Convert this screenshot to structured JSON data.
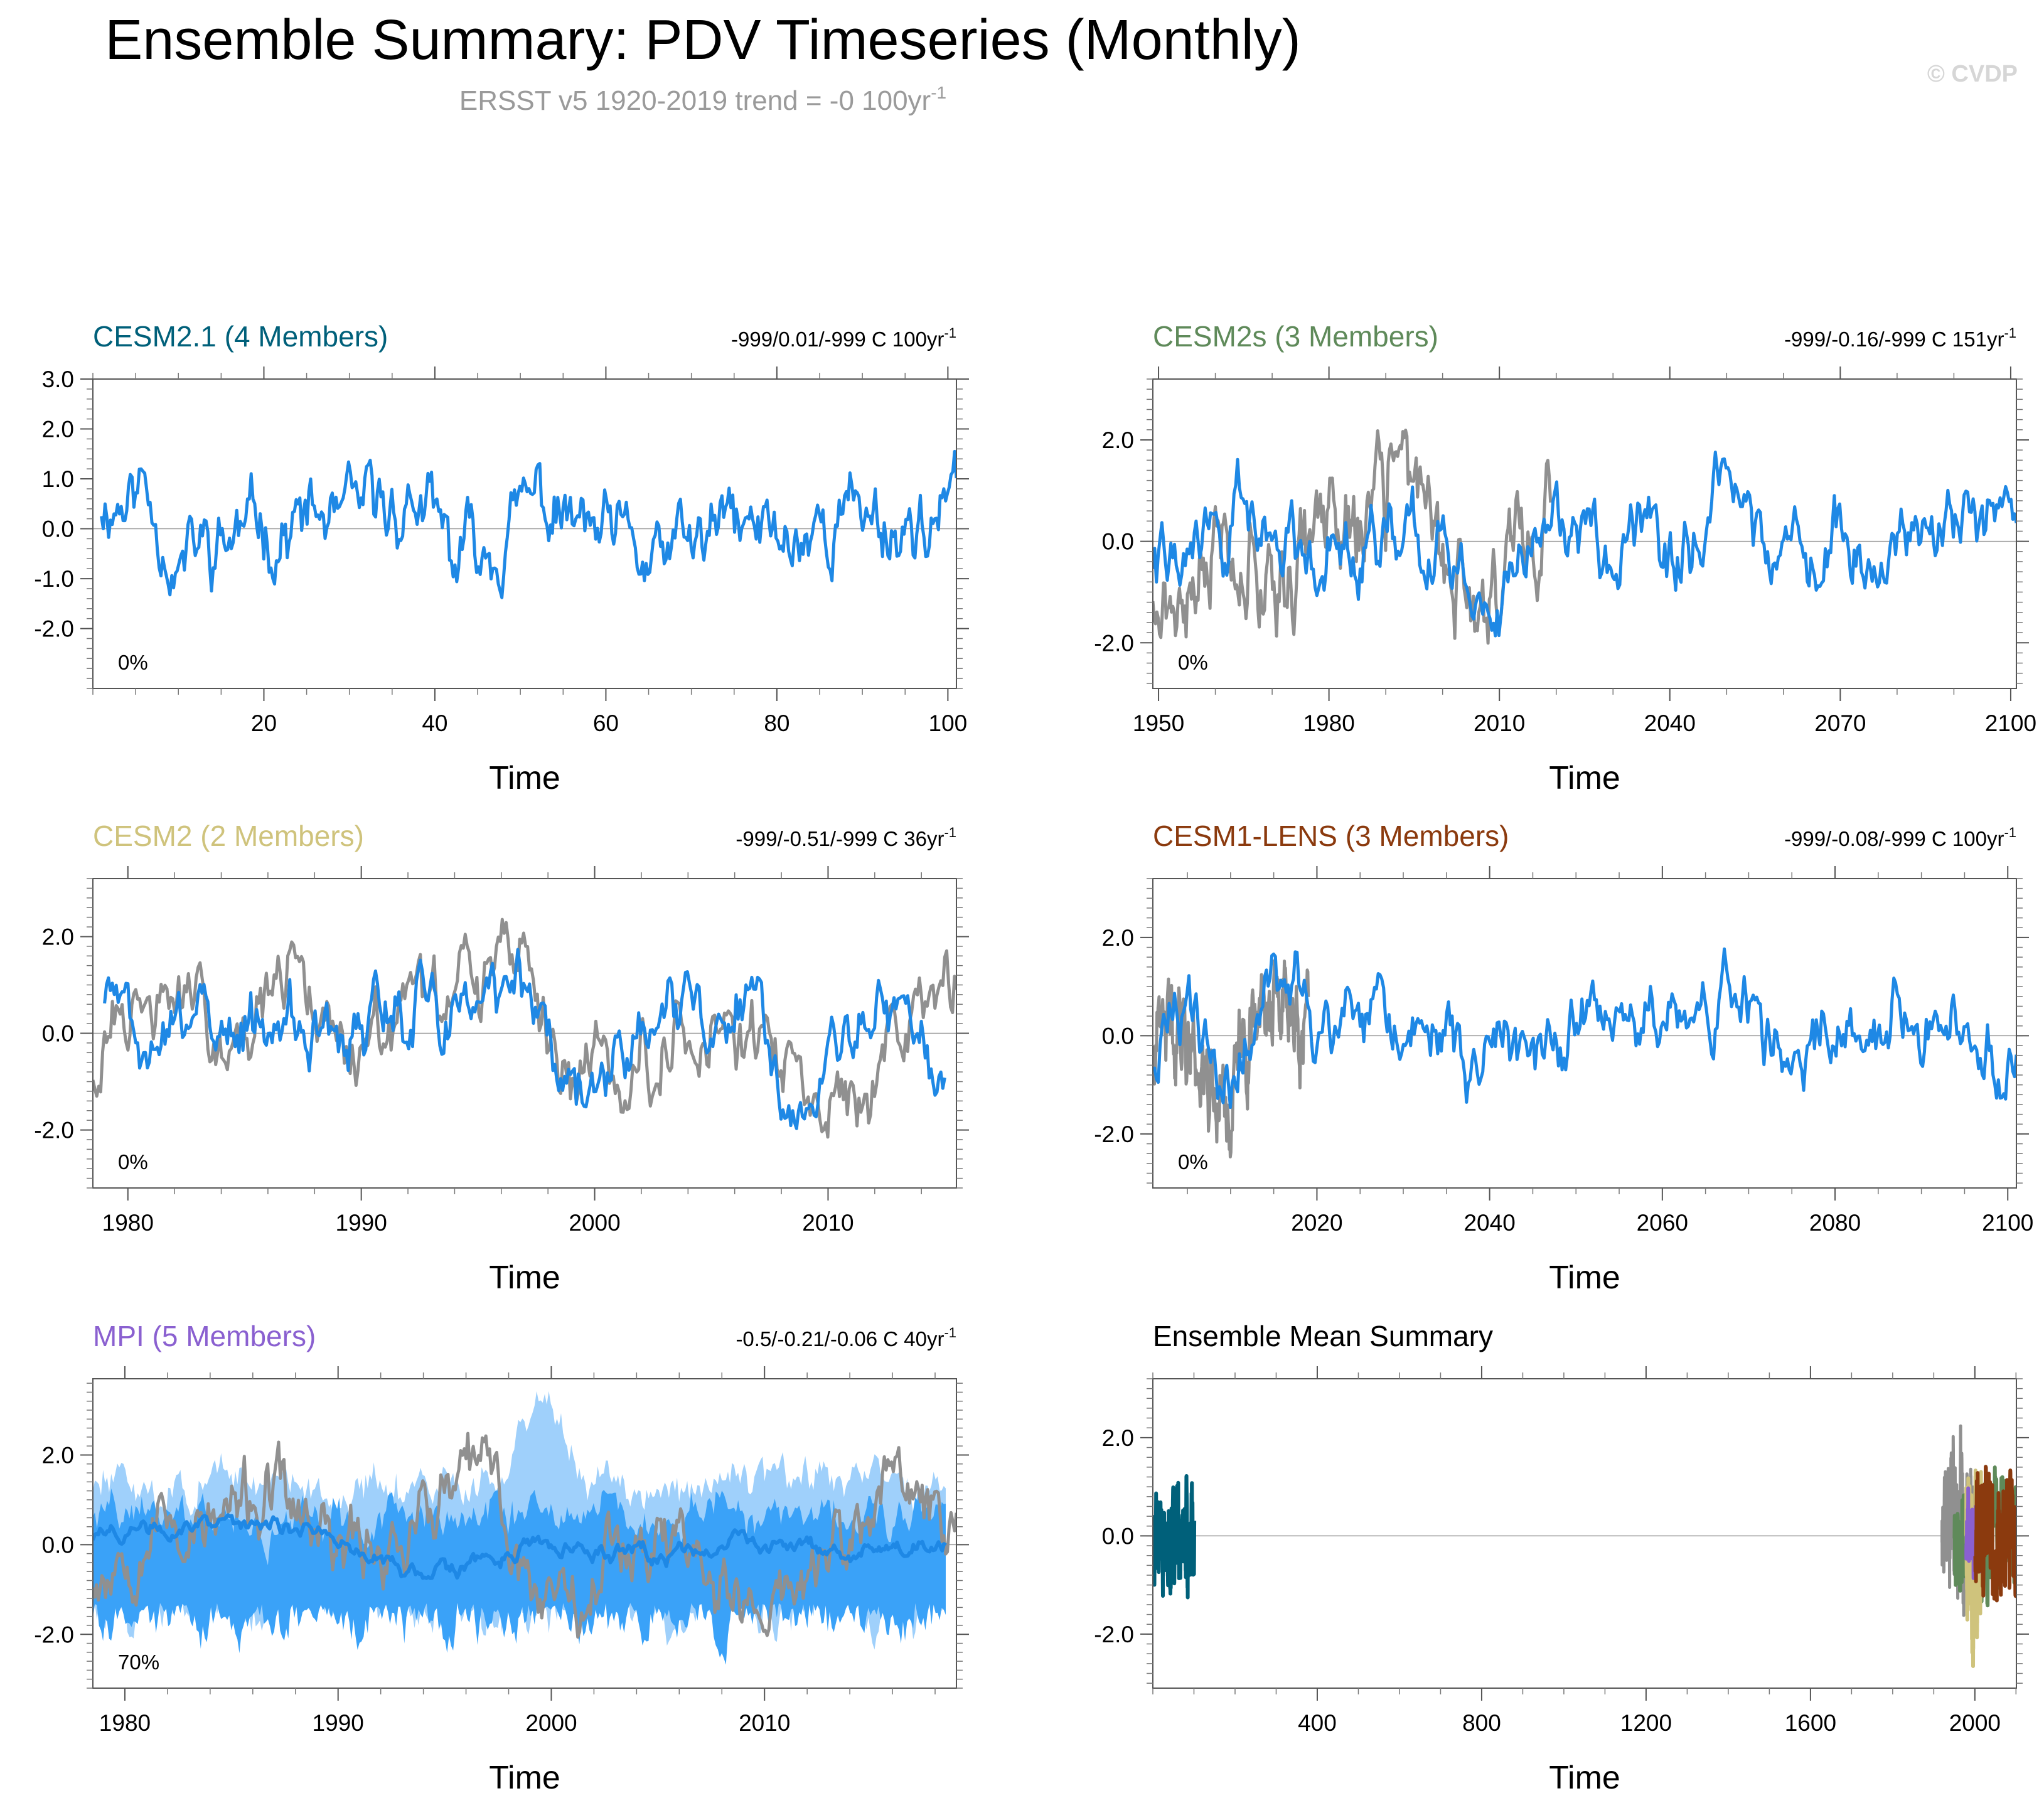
{
  "title": "Ensemble Summary: PDV Timeseries (Monthly)",
  "subtitle": {
    "main": "ERSST v5 1920-2019 trend = -0 100yr",
    "sup": "-1"
  },
  "watermark": "© CVDP",
  "colors": {
    "obs": "#909090",
    "ens": "#1e88e5",
    "spread_outer": "#9fd0fb",
    "spread_inner": "#3aa2f8",
    "cesm21": "#00607a",
    "cesm2s": "#5f8a5a",
    "cesm2": "#cfc37c",
    "cesm1": "#8b3a0e",
    "mpi": "#8a60d0"
  },
  "chart_data": [
    {
      "id": "cesm21",
      "type": "line",
      "title": "CESM2.1 (4 Members)",
      "title_color": "#00607a",
      "stats": "-999/0.01/-999 C 100yr",
      "stats_sup": "-1",
      "percent": "0%",
      "xlabel": "Time",
      "xlim": [
        0,
        101
      ],
      "ylim": [
        -3.2,
        3.0
      ],
      "xticks": [
        20,
        40,
        60,
        80,
        100
      ],
      "yticks": [
        3.0,
        2.0,
        1.0,
        0.0,
        -1.0,
        -2.0
      ],
      "ytick_labels": [
        "3.0",
        "2.0",
        "1.0",
        "0.0",
        "-1.0",
        "-2.0"
      ],
      "series": [
        {
          "name": "Ensemble mean",
          "role": "ens",
          "x_start": 1,
          "x_end": 101,
          "seed": 11,
          "amp": 1.0,
          "mean": 0.0,
          "anchors": [
            [
              1,
              0.6
            ],
            [
              6,
              0.9
            ],
            [
              10,
              -0.6
            ],
            [
              20,
              0.1
            ],
            [
              30,
              0.0
            ],
            [
              38,
              0.6
            ],
            [
              42,
              -0.8
            ],
            [
              52,
              0.5
            ],
            [
              58,
              -0.2
            ],
            [
              65,
              -0.8
            ],
            [
              75,
              0.0
            ],
            [
              82,
              -0.2
            ],
            [
              88,
              0.4
            ],
            [
              95,
              0.1
            ],
            [
              101,
              0.3
            ]
          ]
        }
      ]
    },
    {
      "id": "cesm2s",
      "type": "line",
      "title": "CESM2s (3 Members)",
      "title_color": "#5f8a5a",
      "stats": "-999/-0.16/-999 C 151yr",
      "stats_sup": "-1",
      "percent": "0%",
      "xlabel": "Time",
      "xlim": [
        1949,
        2101
      ],
      "ylim": [
        -2.9,
        3.2
      ],
      "xticks": [
        1950,
        1980,
        2010,
        2040,
        2070,
        2100
      ],
      "yticks": [
        2.0,
        0.0,
        -2.0
      ],
      "ytick_labels": [
        "2.0",
        "0.0",
        "-2.0"
      ],
      "series": [
        {
          "name": "ERSST v5",
          "role": "obs",
          "x_start": 1949,
          "x_end": 2019,
          "seed": 21,
          "amp": 1.25,
          "mean": 0.0,
          "anchors": [
            [
              1949,
              -0.7
            ],
            [
              1955,
              -1.5
            ],
            [
              1960,
              0.4
            ],
            [
              1970,
              -0.6
            ],
            [
              1980,
              0.2
            ],
            [
              1988,
              0.7
            ],
            [
              1996,
              1.2
            ],
            [
              2002,
              -0.8
            ],
            [
              2008,
              -1.3
            ],
            [
              2013,
              0.6
            ],
            [
              2019,
              0.3
            ]
          ]
        },
        {
          "name": "Ensemble mean",
          "role": "ens",
          "x_start": 1949,
          "x_end": 2101,
          "seed": 22,
          "amp": 1.0,
          "mean": 0.0,
          "anchors": [
            [
              1949,
              -0.2
            ],
            [
              1955,
              -0.6
            ],
            [
              1960,
              0.6
            ],
            [
              1975,
              0.0
            ],
            [
              1985,
              0.5
            ],
            [
              2000,
              -0.4
            ],
            [
              2010,
              -0.8
            ],
            [
              2020,
              0.2
            ],
            [
              2035,
              -0.3
            ],
            [
              2050,
              0.3
            ],
            [
              2065,
              -0.1
            ],
            [
              2080,
              0.2
            ],
            [
              2095,
              0.4
            ],
            [
              2101,
              0.1
            ]
          ]
        }
      ]
    },
    {
      "id": "cesm2",
      "type": "line",
      "title": "CESM2 (2 Members)",
      "title_color": "#cfc37c",
      "stats": "-999/-0.51/-999 C 36yr",
      "stats_sup": "-1",
      "percent": "0%",
      "xlabel": "Time",
      "xlim": [
        1978.5,
        2015.5
      ],
      "ylim": [
        -3.2,
        3.2
      ],
      "xticks": [
        1980,
        1990,
        2000,
        2010
      ],
      "yticks": [
        2.0,
        0.0,
        -2.0
      ],
      "ytick_labels": [
        "2.0",
        "0.0",
        "-2.0"
      ],
      "series": [
        {
          "name": "ERSST v5",
          "role": "obs",
          "x_start": 1978.5,
          "x_end": 2015.5,
          "seed": 31,
          "amp": 1.1,
          "mean": 0.0,
          "anchors": [
            [
              1978.5,
              -0.5
            ],
            [
              1981,
              0.7
            ],
            [
              1984,
              0.3
            ],
            [
              1987,
              0.9
            ],
            [
              1990,
              -0.2
            ],
            [
              1993,
              0.3
            ],
            [
              1995,
              1.0
            ],
            [
              1997,
              1.6
            ],
            [
              1999,
              -1.0
            ],
            [
              2002,
              -0.4
            ],
            [
              2004,
              0.4
            ],
            [
              2007,
              0.0
            ],
            [
              2009,
              -1.6
            ],
            [
              2011,
              -1.2
            ],
            [
              2013,
              -0.4
            ],
            [
              2015.5,
              1.4
            ]
          ]
        },
        {
          "name": "Ensemble mean",
          "role": "ens",
          "x_start": 1979,
          "x_end": 2015,
          "seed": 32,
          "amp": 1.0,
          "mean": 0.0,
          "anchors": [
            [
              1979,
              1.0
            ],
            [
              1980,
              0.2
            ],
            [
              1981,
              -0.6
            ],
            [
              1983,
              0.5
            ],
            [
              1986,
              0.2
            ],
            [
              1988,
              -0.1
            ],
            [
              1992,
              0.2
            ],
            [
              1995,
              0.6
            ],
            [
              1997,
              1.0
            ],
            [
              1999,
              -1.6
            ],
            [
              2001,
              -0.5
            ],
            [
              2003,
              0.5
            ],
            [
              2005,
              0.0
            ],
            [
              2007,
              0.8
            ],
            [
              2009,
              -1.6
            ],
            [
              2011,
              0.3
            ],
            [
              2013,
              0.5
            ],
            [
              2015,
              -1.3
            ]
          ]
        }
      ]
    },
    {
      "id": "cesm1",
      "type": "line",
      "title": "CESM1-LENS (3 Members)",
      "title_color": "#8b3a0e",
      "stats": "-999/-0.08/-999 C 100yr",
      "stats_sup": "-1",
      "percent": "0%",
      "xlabel": "Time",
      "xlim": [
        2001,
        2101
      ],
      "ylim": [
        -3.1,
        3.2
      ],
      "xticks": [
        2020,
        2040,
        2060,
        2080,
        2100
      ],
      "yticks": [
        2.0,
        0.0,
        -2.0
      ],
      "ytick_labels": [
        "2.0",
        "0.0",
        "-2.0"
      ],
      "series": [
        {
          "name": "ERSST v5",
          "role": "obs",
          "x_start": 2001,
          "x_end": 2019,
          "seed": 41,
          "amp": 1.2,
          "mean": 0.0,
          "anchors": [
            [
              2001,
              -0.6
            ],
            [
              2004,
              0.5
            ],
            [
              2007,
              -0.6
            ],
            [
              2010,
              -1.4
            ],
            [
              2013,
              0.8
            ],
            [
              2016,
              0.4
            ],
            [
              2019,
              0.0
            ]
          ]
        },
        {
          "name": "Ensemble mean",
          "role": "ens",
          "x_start": 2001,
          "x_end": 2101,
          "seed": 42,
          "amp": 1.0,
          "mean": 0.0,
          "anchors": [
            [
              2001,
              -0.3
            ],
            [
              2006,
              0.4
            ],
            [
              2010,
              -1.2
            ],
            [
              2014,
              0.9
            ],
            [
              2020,
              0.3
            ],
            [
              2030,
              0.0
            ],
            [
              2040,
              -0.4
            ],
            [
              2050,
              0.1
            ],
            [
              2060,
              0.0
            ],
            [
              2068,
              0.8
            ],
            [
              2075,
              -0.9
            ],
            [
              2082,
              0.6
            ],
            [
              2088,
              0.3
            ],
            [
              2095,
              0.1
            ],
            [
              2101,
              -0.6
            ]
          ]
        }
      ]
    },
    {
      "id": "mpi",
      "type": "area",
      "title": "MPI (5 Members)",
      "title_color": "#8a60d0",
      "stats": "-0.5/-0.21/-0.06 C 40yr",
      "stats_sup": "-1",
      "percent": "70%",
      "xlabel": "Time",
      "xlim": [
        1978.5,
        2019
      ],
      "ylim": [
        -3.2,
        3.7
      ],
      "xticks": [
        1980,
        1990,
        2000,
        2010
      ],
      "yticks": [
        2.0,
        0.0,
        -2.0
      ],
      "ytick_labels": [
        "2.0",
        "0.0",
        "-2.0"
      ],
      "series": [
        {
          "name": "Outer spread",
          "role": "spread_outer",
          "x_start": 1978.5,
          "x_end": 2018.5,
          "seed": 51,
          "upper": 1.3,
          "lower": -1.0
        },
        {
          "name": "Inner spread",
          "role": "spread_inner",
          "x_start": 1978.5,
          "x_end": 2018.5,
          "seed": 52,
          "upper": 0.7,
          "lower": -1.3
        },
        {
          "name": "ERSST v5",
          "role": "obs",
          "x_start": 1978.5,
          "x_end": 2019,
          "seed": 53,
          "amp": 1.1,
          "mean": 0.0,
          "anchors": [
            [
              1978.5,
              -0.5
            ],
            [
              1981,
              0.7
            ],
            [
              1984,
              0.3
            ],
            [
              1987,
              1.0
            ],
            [
              1990,
              -0.2
            ],
            [
              1993,
              0.3
            ],
            [
              1995,
              1.0
            ],
            [
              1997,
              1.6
            ],
            [
              1999,
              -1.0
            ],
            [
              2002,
              -0.4
            ],
            [
              2004,
              0.4
            ],
            [
              2007,
              0.0
            ],
            [
              2009,
              -1.6
            ],
            [
              2011,
              -1.2
            ],
            [
              2013,
              -0.4
            ],
            [
              2016,
              1.2
            ],
            [
              2019,
              0.6
            ]
          ]
        },
        {
          "name": "Ensemble mean",
          "role": "ens",
          "x_start": 1978.5,
          "x_end": 2018.5,
          "seed": 54,
          "amp": 0.25,
          "mean": 0.0,
          "anchors": [
            [
              1978.5,
              0.2
            ],
            [
              1985,
              0.5
            ],
            [
              1989,
              0.3
            ],
            [
              1994,
              -0.8
            ],
            [
              1999,
              -0.1
            ],
            [
              2004,
              -0.3
            ],
            [
              2010,
              0.0
            ],
            [
              2014,
              -0.2
            ],
            [
              2018.5,
              0.0
            ]
          ]
        }
      ]
    },
    {
      "id": "summary",
      "type": "line",
      "title": "Ensemble Mean Summary",
      "title_color": "#000000",
      "stats": "",
      "stats_sup": "",
      "percent": "",
      "xlabel": "Time",
      "xlim": [
        0,
        2101
      ],
      "ylim": [
        -3.1,
        3.2
      ],
      "xticks": [
        400,
        800,
        1200,
        1600,
        2000
      ],
      "yticks": [
        2.0,
        0.0,
        -2.0
      ],
      "ytick_labels": [
        "2.0",
        "0.0",
        "-2.0"
      ],
      "series": [
        {
          "name": "ERSST v5",
          "role": "obs",
          "x_start": 1920,
          "x_end": 2019,
          "seed": 61,
          "amp": 1.5,
          "mean": 0.0
        },
        {
          "name": "CESM2s",
          "role": "cesm2s",
          "x_start": 1950,
          "x_end": 2100,
          "seed": 62,
          "amp": 1.1,
          "mean": 0.0
        },
        {
          "name": "CESM2",
          "role": "cesm2",
          "x_start": 1979,
          "x_end": 2015,
          "seed": 63,
          "amp": 1.5,
          "mean": 0.0
        },
        {
          "name": "MPI",
          "role": "mpi",
          "x_start": 1979,
          "x_end": 2018,
          "seed": 64,
          "amp": 0.6,
          "mean": 0.0
        },
        {
          "name": "CESM1-LENS",
          "role": "cesm1",
          "x_start": 2001,
          "x_end": 2100,
          "seed": 65,
          "amp": 1.1,
          "mean": 0.0
        },
        {
          "name": "CESM2.1",
          "role": "cesm21",
          "x_start": 1,
          "x_end": 101,
          "seed": 66,
          "amp": 1.0,
          "mean": 0.0
        }
      ]
    }
  ]
}
